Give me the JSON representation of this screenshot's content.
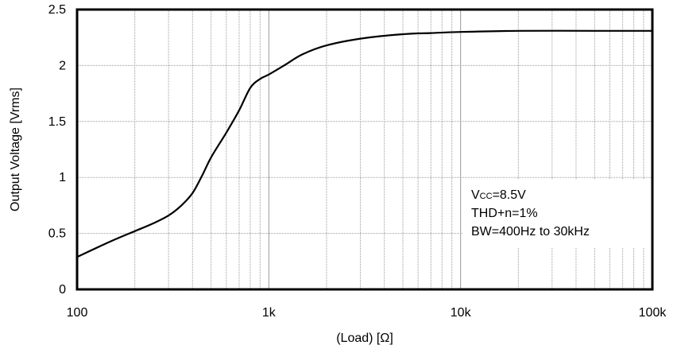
{
  "chart_data": {
    "type": "line",
    "title": "",
    "xlabel": "(Load) [Ω]",
    "ylabel": "Output Voltage [Vrms]",
    "x_scale": "log",
    "xlim": [
      100,
      100000
    ],
    "ylim": [
      0,
      2.5
    ],
    "x_ticks": [
      {
        "value": 100,
        "label": "100"
      },
      {
        "value": 1000,
        "label": "1k"
      },
      {
        "value": 10000,
        "label": "10k"
      },
      {
        "value": 100000,
        "label": "100k"
      }
    ],
    "y_ticks": [
      {
        "value": 0,
        "label": "0"
      },
      {
        "value": 0.5,
        "label": "0.5"
      },
      {
        "value": 1,
        "label": "1"
      },
      {
        "value": 1.5,
        "label": "1.5"
      },
      {
        "value": 2,
        "label": "2"
      },
      {
        "value": 2.5,
        "label": "2.5"
      }
    ],
    "grid": true,
    "series": [
      {
        "color": "#000000",
        "x": [
          100,
          150,
          200,
          250,
          300,
          350,
          400,
          450,
          500,
          600,
          700,
          800,
          900,
          1000,
          1200,
          1500,
          2000,
          3000,
          5000,
          7000,
          10000,
          20000,
          50000,
          100000
        ],
        "y": [
          0.29,
          0.43,
          0.52,
          0.59,
          0.66,
          0.75,
          0.86,
          1.02,
          1.18,
          1.4,
          1.6,
          1.8,
          1.88,
          1.92,
          2.0,
          2.1,
          2.18,
          2.24,
          2.28,
          2.29,
          2.3,
          2.31,
          2.31,
          2.31
        ]
      }
    ],
    "annotation": {
      "vcc_main": "V",
      "vcc_sub": "CC",
      "vcc_rest": "=8.5V",
      "line2": "THD+n=1%",
      "line3": "BW=400Hz to 30kHz"
    }
  }
}
